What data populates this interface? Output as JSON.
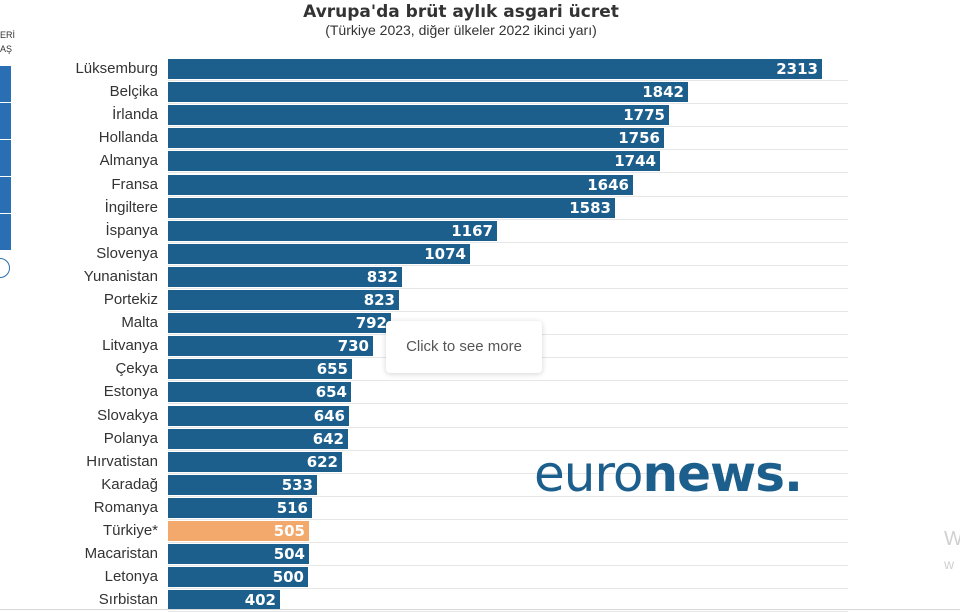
{
  "chart_data": {
    "type": "bar",
    "orientation": "horizontal",
    "title": "Avrupa'da brüt aylık asgari ücret",
    "subtitle": "(Türkiye 2023, diğer ülkeler 2022 ikinci yarı)",
    "categories": [
      "Lüksemburg",
      "Belçika",
      "İrlanda",
      "Hollanda",
      "Almanya",
      "Fransa",
      "İngiltere",
      "İspanya",
      "Slovenya",
      "Yunanistan",
      "Portekiz",
      "Malta",
      "Litvanya",
      "Çekya",
      "Estonya",
      "Slovakya",
      "Polanya",
      "Hırvatistan",
      "Karadağ",
      "Romanya",
      "Türkiye*",
      "Macaristan",
      "Letonya",
      "Sırbistan"
    ],
    "values": [
      2313,
      1842,
      1775,
      1756,
      1744,
      1646,
      1583,
      1167,
      1074,
      832,
      823,
      792,
      730,
      655,
      654,
      646,
      642,
      622,
      533,
      516,
      505,
      504,
      500,
      402
    ],
    "highlight_category": "Türkiye*",
    "colors": {
      "bar": "#1d5f8c",
      "highlight": "#f2a96b"
    },
    "xlim": [
      0,
      2400
    ],
    "grid": true
  },
  "tooltip": {
    "text": "Click to see more"
  },
  "logo": {
    "part1": "euro",
    "part2": "news."
  },
  "sidebar": {
    "text1": "ERİ",
    "text2": "AŞ"
  },
  "watermark": {
    "line1": "W",
    "line2": "w"
  }
}
